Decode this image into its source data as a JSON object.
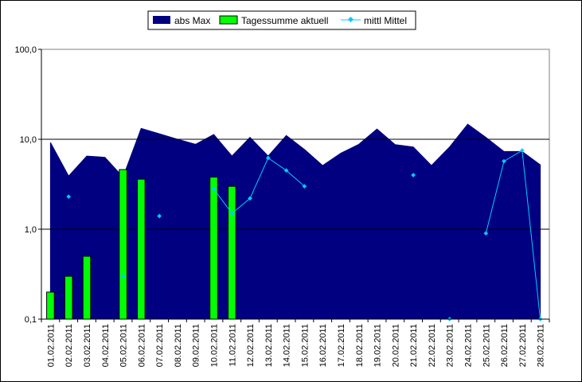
{
  "chart_data": {
    "type": "area",
    "title": "",
    "xlabel": "",
    "ylabel": "",
    "y_scale": "log",
    "ylim": [
      0.1,
      100
    ],
    "y_ticks": [
      "0,1",
      "1,0",
      "10,0",
      "100,0"
    ],
    "y_tick_values": [
      0.1,
      1,
      10,
      100
    ],
    "gridlines": "horizontal at 1 and 10",
    "legend_position": "top-center",
    "categories": [
      "01.02.2011",
      "02.02.2011",
      "03.02.2011",
      "04.02.2011",
      "05.02.2011",
      "06.02.2011",
      "07.02.2011",
      "08.02.2011",
      "09.02.2011",
      "10.02.2011",
      "11.02.2011",
      "12.02.2011",
      "13.02.2011",
      "14.02.2011",
      "15.02.2011",
      "16.02.2011",
      "17.02.2011",
      "18.02.2011",
      "19.02.2011",
      "20.02.2011",
      "21.02.2011",
      "22.02.2011",
      "23.02.2011",
      "24.02.2011",
      "25.02.2011",
      "26.02.2011",
      "27.02.2011",
      "28.02.2011"
    ],
    "series": [
      {
        "name": "abs Max",
        "type": "area",
        "color": "#000080",
        "values": [
          9.2,
          3.9,
          6.5,
          6.3,
          3.8,
          13.2,
          11.5,
          10.0,
          8.8,
          11.3,
          6.5,
          10.5,
          6.5,
          11.0,
          7.7,
          5.1,
          7.0,
          8.8,
          13.0,
          8.7,
          8.2,
          5.1,
          8.2,
          14.7,
          10.5,
          7.3,
          7.3,
          5.2
        ]
      },
      {
        "name": "Tagessumme aktuell",
        "type": "bar",
        "color": "#00ff00",
        "values": [
          0.2,
          0.3,
          0.5,
          null,
          4.6,
          3.6,
          null,
          null,
          null,
          3.8,
          3.0,
          null,
          null,
          null,
          null,
          null,
          null,
          null,
          null,
          null,
          null,
          null,
          null,
          null,
          null,
          null,
          null,
          null
        ]
      },
      {
        "name": "mittl Mittel",
        "type": "line",
        "color": "#00ccff",
        "values": [
          null,
          2.3,
          null,
          null,
          0.3,
          null,
          1.4,
          null,
          null,
          2.8,
          1.5,
          2.2,
          6.2,
          4.5,
          3.0,
          null,
          null,
          null,
          null,
          null,
          4.0,
          null,
          0.1,
          null,
          0.9,
          5.7,
          7.5,
          0.1
        ]
      }
    ]
  }
}
